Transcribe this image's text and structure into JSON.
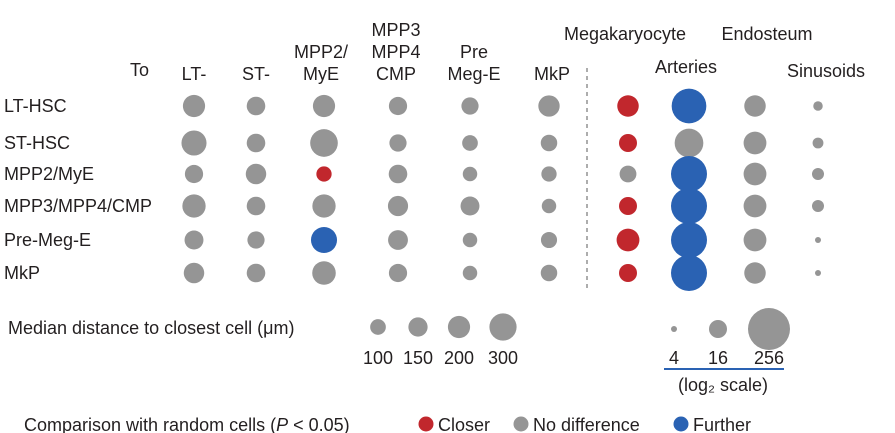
{
  "chart_data": {
    "type": "scatter",
    "to_label": "To",
    "columns": [
      "LT-",
      "ST-",
      "MPP2/\nMyE",
      "MPP3\nMPP4\nCMP",
      "Pre\nMeg-E",
      "MkP",
      "Megakaryocyte",
      "Arteries",
      "Endosteum",
      "Sinusoids"
    ],
    "rows": [
      "LT-HSC",
      "ST-HSC",
      "MPP2/MyE",
      "MPP3/MPP4/CMP",
      "Pre-Meg-E",
      "MkP"
    ],
    "colors": {
      "closer": "#c1272d",
      "no_difference": "#959595",
      "further": "#2a62b3"
    },
    "cells": [
      [
        {
          "d": 200,
          "c": "no_difference"
        },
        {
          "d": 140,
          "c": "no_difference"
        },
        {
          "d": 200,
          "c": "no_difference"
        },
        {
          "d": 135,
          "c": "no_difference"
        },
        {
          "d": 120,
          "c": "no_difference"
        },
        {
          "d": 185,
          "c": "no_difference"
        },
        {
          "d": 24,
          "c": "closer"
        },
        {
          "d": 110,
          "c": "further"
        },
        {
          "d": 24,
          "c": "no_difference"
        },
        {
          "d": 6,
          "c": "no_difference"
        }
      ],
      [
        {
          "d": 255,
          "c": "no_difference"
        },
        {
          "d": 140,
          "c": "no_difference"
        },
        {
          "d": 310,
          "c": "no_difference"
        },
        {
          "d": 120,
          "c": "no_difference"
        },
        {
          "d": 100,
          "c": "no_difference"
        },
        {
          "d": 110,
          "c": "no_difference"
        },
        {
          "d": 16,
          "c": "closer"
        },
        {
          "d": 55,
          "c": "no_difference"
        },
        {
          "d": 28,
          "c": "no_difference"
        },
        {
          "d": 7,
          "c": "no_difference"
        }
      ],
      [
        {
          "d": 135,
          "c": "no_difference"
        },
        {
          "d": 170,
          "c": "no_difference"
        },
        {
          "d": 95,
          "c": "closer"
        },
        {
          "d": 140,
          "c": "no_difference"
        },
        {
          "d": 85,
          "c": "no_difference"
        },
        {
          "d": 95,
          "c": "no_difference"
        },
        {
          "d": 14,
          "c": "no_difference"
        },
        {
          "d": 128,
          "c": "further"
        },
        {
          "d": 28,
          "c": "no_difference"
        },
        {
          "d": 8,
          "c": "no_difference"
        }
      ],
      [
        {
          "d": 220,
          "c": "no_difference"
        },
        {
          "d": 140,
          "c": "no_difference"
        },
        {
          "d": 220,
          "c": "no_difference"
        },
        {
          "d": 165,
          "c": "no_difference"
        },
        {
          "d": 145,
          "c": "no_difference"
        },
        {
          "d": 85,
          "c": "no_difference"
        },
        {
          "d": 16,
          "c": "closer"
        },
        {
          "d": 128,
          "c": "further"
        },
        {
          "d": 28,
          "c": "no_difference"
        },
        {
          "d": 8,
          "c": "no_difference"
        }
      ],
      [
        {
          "d": 145,
          "c": "no_difference"
        },
        {
          "d": 120,
          "c": "no_difference"
        },
        {
          "d": 275,
          "c": "further"
        },
        {
          "d": 160,
          "c": "no_difference"
        },
        {
          "d": 85,
          "c": "no_difference"
        },
        {
          "d": 105,
          "c": "no_difference"
        },
        {
          "d": 28,
          "c": "closer"
        },
        {
          "d": 128,
          "c": "further"
        },
        {
          "d": 28,
          "c": "no_difference"
        },
        {
          "d": 4,
          "c": "no_difference"
        }
      ],
      [
        {
          "d": 170,
          "c": "no_difference"
        },
        {
          "d": 140,
          "c": "no_difference"
        },
        {
          "d": 225,
          "c": "no_difference"
        },
        {
          "d": 135,
          "c": "no_difference"
        },
        {
          "d": 85,
          "c": "no_difference"
        },
        {
          "d": 110,
          "c": "no_difference"
        },
        {
          "d": 16,
          "c": "closer"
        },
        {
          "d": 128,
          "c": "further"
        },
        {
          "d": 24,
          "c": "no_difference"
        },
        {
          "d": 4,
          "c": "no_difference"
        }
      ]
    ],
    "size_legend": {
      "label": "Median distance to closest cell (μm)",
      "linear_values": [
        100,
        150,
        200,
        300
      ],
      "linear_tick_labels": [
        "100",
        "150",
        "200",
        "300"
      ],
      "log_values": [
        4,
        16,
        256
      ],
      "log_tick_labels": [
        "4",
        "16",
        "256"
      ],
      "log_note": "(log₂ scale)"
    },
    "color_legend": {
      "label": "Comparison with random cells (P < 0.05)",
      "items": [
        {
          "key": "closer",
          "label": "Closer"
        },
        {
          "key": "no_difference",
          "label": "No difference"
        },
        {
          "key": "further",
          "label": "Further"
        }
      ]
    }
  }
}
